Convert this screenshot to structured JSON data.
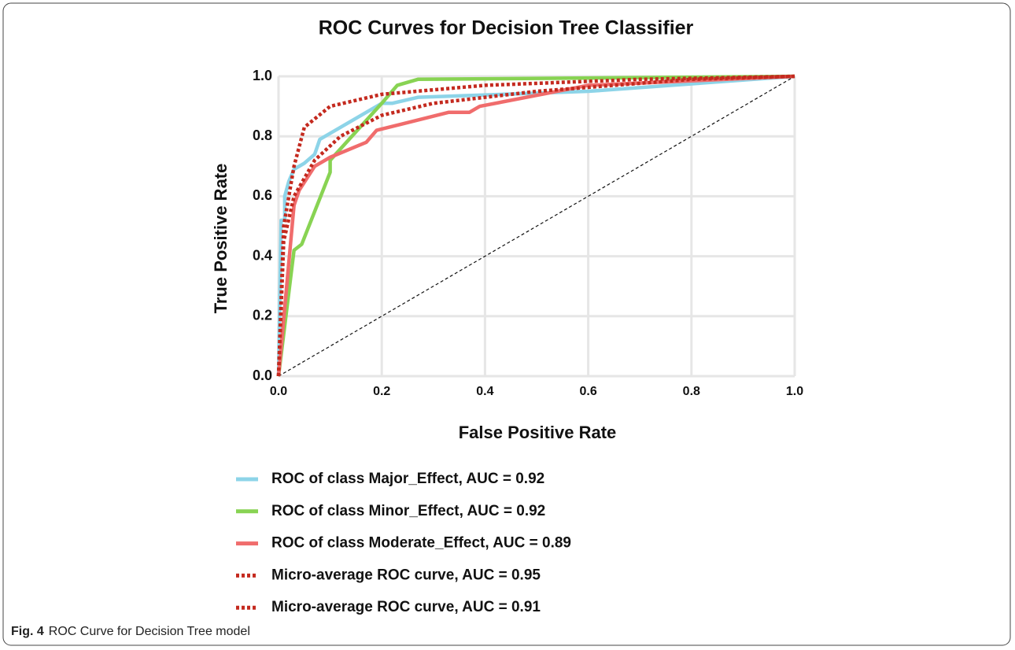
{
  "chart_data": {
    "type": "line",
    "title": "ROC Curves for Decision Tree Classifier",
    "xlabel": "False Positive Rate",
    "ylabel": "True Positive Rate",
    "xlim": [
      0,
      1
    ],
    "ylim": [
      0,
      1
    ],
    "xticks": [
      {
        "value": 0,
        "label": "0.0"
      },
      0.2,
      0.4,
      0.6,
      0.8,
      {
        "value": 1,
        "label": "1.0"
      }
    ],
    "yticks": [
      {
        "value": 0,
        "label": "0.0"
      },
      0.2,
      0.4,
      0.6,
      0.8,
      {
        "value": 1,
        "label": "1.0"
      }
    ],
    "grid": true,
    "series": [
      {
        "name": "ROC of class Major_Effect, AUC = 0.92",
        "color": "#8dd4e8",
        "linestyle": "solid",
        "x": [
          0,
          0.005,
          0.012,
          0.012,
          0.02,
          0.03,
          0.05,
          0.07,
          0.08,
          0.2,
          0.22,
          0.27,
          0.6,
          1
        ],
        "values": [
          0,
          0.52,
          0.52,
          0.6,
          0.65,
          0.69,
          0.71,
          0.74,
          0.79,
          0.91,
          0.91,
          0.93,
          0.95,
          1
        ]
      },
      {
        "name": "ROC of class Minor_Effect, AUC = 0.92",
        "color": "#88d353",
        "linestyle": "solid",
        "x": [
          0,
          0.03,
          0.045,
          0.1,
          0.1,
          0.2,
          0.23,
          0.27,
          1
        ],
        "values": [
          0,
          0.42,
          0.44,
          0.68,
          0.72,
          0.91,
          0.97,
          0.99,
          1
        ]
      },
      {
        "name": "ROC of class Moderate_Effect, AUC = 0.89",
        "color": "#f06c6c",
        "linestyle": "solid",
        "x": [
          0,
          0.03,
          0.04,
          0.07,
          0.1,
          0.17,
          0.19,
          0.33,
          0.37,
          0.39,
          0.6,
          1
        ],
        "values": [
          0,
          0.57,
          0.62,
          0.7,
          0.73,
          0.78,
          0.82,
          0.88,
          0.88,
          0.9,
          0.97,
          1
        ]
      },
      {
        "name": "Micro-average ROC curve, AUC = 0.95",
        "color": "#c42a1f",
        "linestyle": "dotted",
        "x": [
          0,
          0.01,
          0.03,
          0.05,
          0.1,
          0.2,
          0.4,
          0.7,
          1
        ],
        "values": [
          0,
          0.5,
          0.7,
          0.83,
          0.9,
          0.94,
          0.97,
          0.99,
          1
        ]
      },
      {
        "name": "Micro-average ROC curve, AUC = 0.91",
        "color": "#c42a1f",
        "linestyle": "dotted",
        "x": [
          0,
          0.01,
          0.03,
          0.07,
          0.12,
          0.2,
          0.3,
          0.5,
          0.8,
          1
        ],
        "values": [
          0,
          0.45,
          0.6,
          0.72,
          0.8,
          0.87,
          0.91,
          0.95,
          0.99,
          1
        ]
      }
    ]
  },
  "caption": {
    "label": "Fig. 4",
    "text": "ROC Curve for Decision Tree model"
  }
}
